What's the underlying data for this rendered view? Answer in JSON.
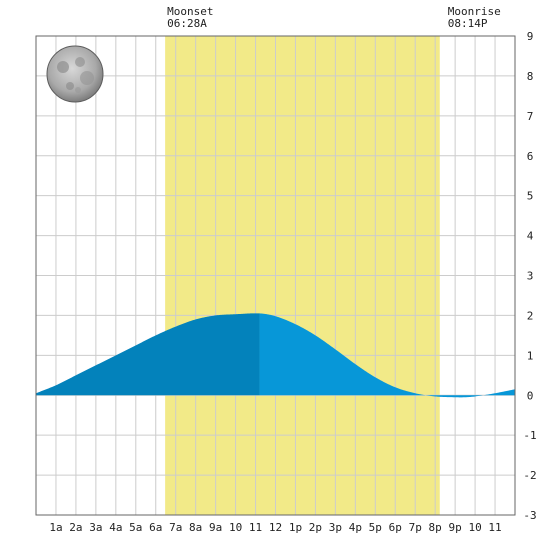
{
  "chart_data": {
    "type": "area",
    "title": "",
    "xlabel": "",
    "ylabel": "",
    "xlim": [
      0,
      24
    ],
    "ylim": [
      -3,
      9
    ],
    "grid": true,
    "x_ticks": [
      "1a",
      "2a",
      "3a",
      "4a",
      "5a",
      "6a",
      "7a",
      "8a",
      "9a",
      "10",
      "11",
      "12",
      "1p",
      "2p",
      "3p",
      "4p",
      "5p",
      "6p",
      "7p",
      "8p",
      "9p",
      "10",
      "11"
    ],
    "y_ticks": [
      "-3",
      "-2",
      "-1",
      "0",
      "1",
      "2",
      "3",
      "4",
      "5",
      "6",
      "7",
      "8",
      "9"
    ],
    "annotations": {
      "moonset": {
        "label": "Moonset",
        "time": "06:28A",
        "hour": 6.47
      },
      "moonrise": {
        "label": "Moonrise",
        "time": "08:14P",
        "hour": 20.23
      }
    },
    "daylight_band_hours": [
      6.47,
      20.23
    ],
    "moon_phase_icon": "full-moon-icon",
    "colors": {
      "daylight": "#f2ea88",
      "tide_rising": "#0382bb",
      "tide_falling": "#0797d8",
      "grid": "#cccccc",
      "frame": "#666666"
    },
    "series": [
      {
        "x": [
          0,
          1,
          2,
          3,
          4,
          5,
          6,
          7,
          8,
          9,
          10,
          11.2,
          12,
          13,
          14,
          15,
          16,
          17,
          18,
          19,
          20,
          21,
          21.5,
          22,
          23,
          24
        ],
        "values": [
          0.05,
          0.25,
          0.5,
          0.75,
          1.0,
          1.25,
          1.5,
          1.72,
          1.9,
          2.0,
          2.03,
          2.05,
          1.98,
          1.78,
          1.5,
          1.15,
          0.78,
          0.45,
          0.2,
          0.05,
          -0.03,
          -0.05,
          -0.05,
          -0.03,
          0.05,
          0.15
        ]
      }
    ]
  }
}
